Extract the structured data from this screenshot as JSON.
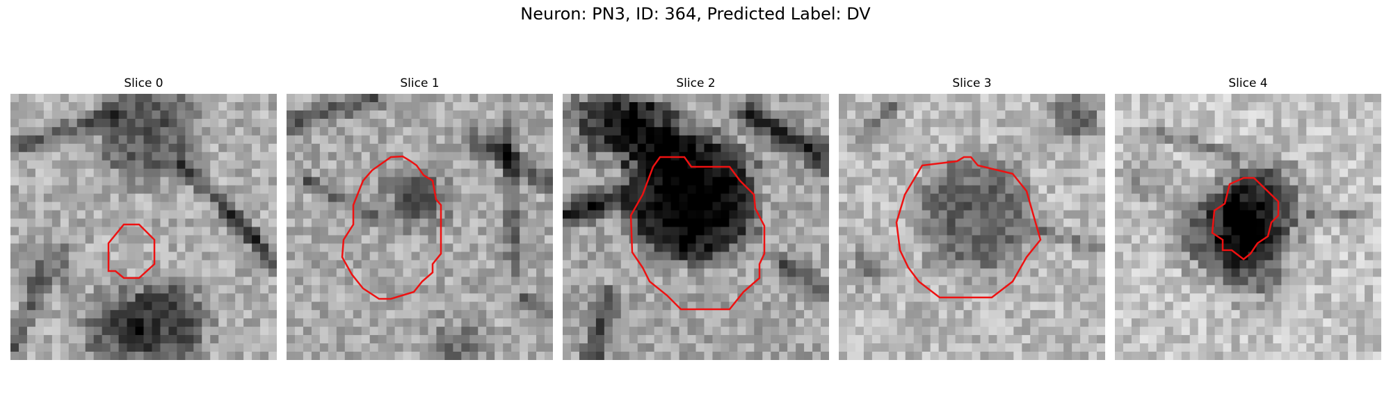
{
  "figure": {
    "title": "Neuron: PN3, ID: 364, Predicted Label: DV"
  },
  "panels": [
    {
      "title": "Slice 0"
    },
    {
      "title": "Slice 1"
    },
    {
      "title": "Slice 2"
    },
    {
      "title": "Slice 3"
    },
    {
      "title": "Slice 4"
    }
  ],
  "colors": {
    "contour": "#ee1111",
    "background": "#ffffff"
  }
}
